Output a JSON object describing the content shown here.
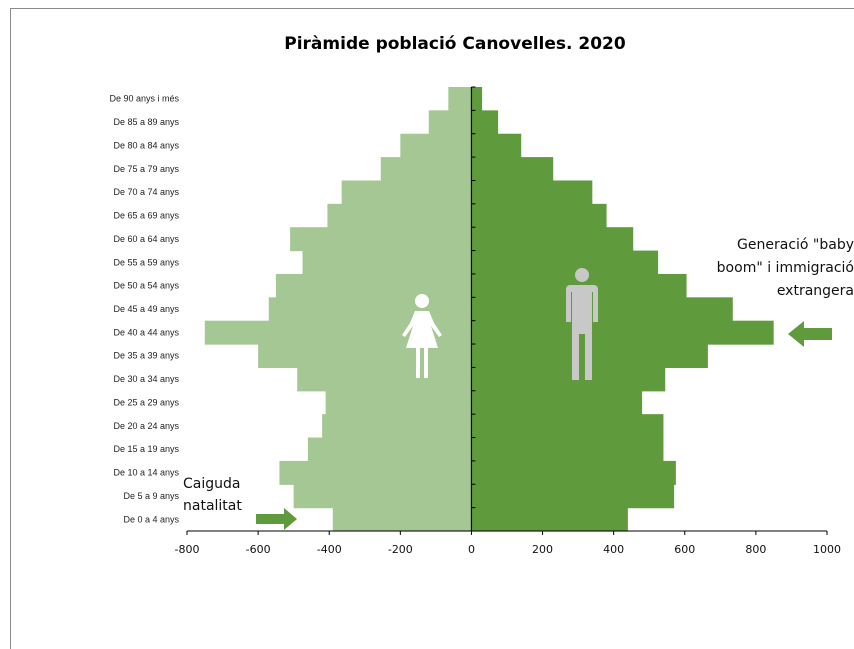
{
  "chart_data": {
    "type": "bar",
    "title": "Piràmide població Canovelles. 2020",
    "categories": [
      "De 0 a 4 anys",
      "De 5 a 9 anys",
      "De 10 a 14 anys",
      "De 15 a 19 anys",
      "De 20 a 24 anys",
      "De 25 a 29 anys",
      "De 30 a 34 anys",
      "De 35 a 39 anys",
      "De 40 a 44 anys",
      "De 45 a 49 anys",
      "De 50 a 54 anys",
      "De 55 a 59 anys",
      "De 60 a 64 anys",
      "De 65 a 69 anys",
      "De 70 a 74 anys",
      "De 75 a 79 anys",
      "De 80 a 84 anys",
      "De 85 a 89 anys",
      "De 90 anys i més"
    ],
    "series": [
      {
        "color": "#a5c794",
        "values": [
          -390,
          -500,
          -540,
          -460,
          -420,
          -410,
          -490,
          -600,
          -750,
          -570,
          -550,
          -475,
          -510,
          -405,
          -365,
          -255,
          -200,
          -120,
          -65
        ]
      },
      {
        "color": "#5f9a3c",
        "values": [
          440,
          570,
          575,
          540,
          540,
          480,
          545,
          665,
          850,
          735,
          605,
          525,
          455,
          380,
          340,
          230,
          140,
          75,
          30
        ]
      }
    ],
    "xlim": [
      -800,
      1000
    ],
    "xticks": [
      "-800",
      "-600",
      "-400",
      "-200",
      "0",
      "200",
      "400",
      "600",
      "800",
      "1000"
    ],
    "annotations": [
      {
        "id": "babyboom",
        "lines": [
          "Generació \"baby",
          "boom\" i immigració",
          "extrangera"
        ],
        "arrow_color": "#5f9a3c"
      },
      {
        "id": "natalitat",
        "lines": [
          "Caiguda",
          "natalitat"
        ],
        "arrow_color": "#5f9a3c"
      }
    ],
    "icons": {
      "female": "female-icon",
      "male": "male-icon"
    }
  }
}
